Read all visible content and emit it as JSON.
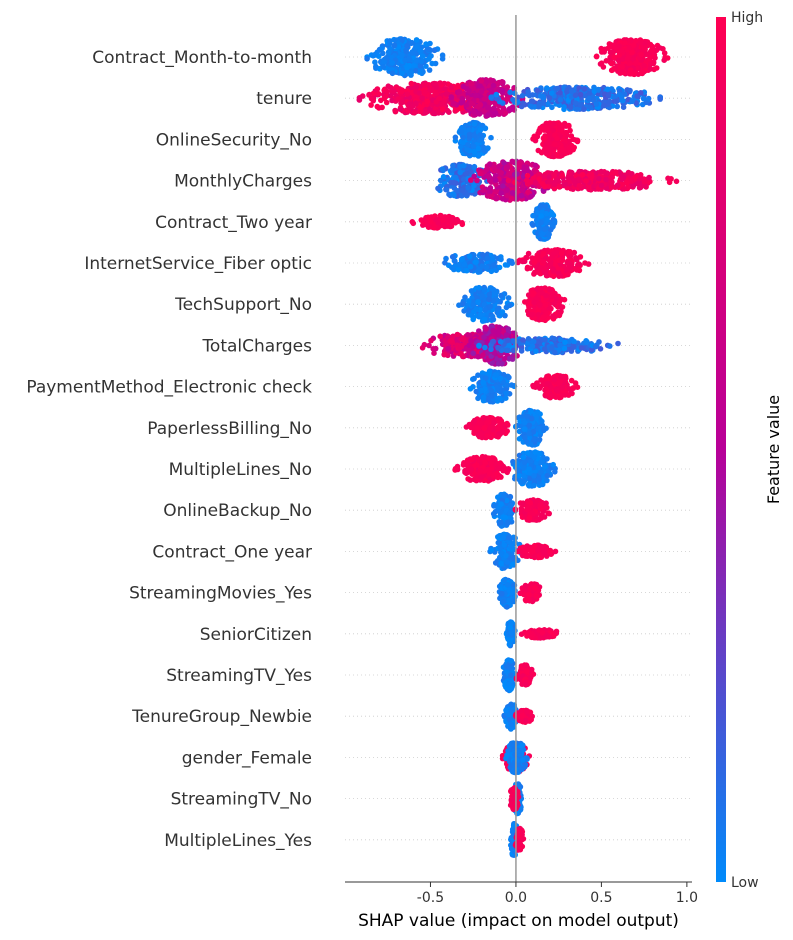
{
  "chart_data": {
    "type": "scatter",
    "subtype": "shap-beeswarm",
    "xlabel": "SHAP value (impact on model output)",
    "xlim": [
      -1.0,
      1.03
    ],
    "xticks": [
      {
        "value": -0.5,
        "label": "-0.5"
      },
      {
        "value": 0.0,
        "label": "0.0"
      },
      {
        "value": 0.5,
        "label": "0.5"
      },
      {
        "value": 1.0,
        "label": "1.0"
      }
    ],
    "colorbar": {
      "title": "Feature value",
      "high_label": "High",
      "low_label": "Low",
      "low_color": "#008bfb",
      "mid_color": "#b80098",
      "high_color": "#ff0052"
    },
    "reference_line": 0.0,
    "grid": "dotted horizontal per feature",
    "features": [
      {
        "name": "Contract_Month-to-month",
        "groups": [
          {
            "center": -0.65,
            "spread": 0.17,
            "height": 0.9,
            "count": 260,
            "value_low": 0.0,
            "value_high": 0.08
          },
          {
            "center": 0.68,
            "spread": 0.16,
            "height": 0.85,
            "count": 320,
            "value_low": 0.92,
            "value_high": 1.0
          }
        ]
      },
      {
        "name": "tenure",
        "groups": [
          {
            "center": -0.5,
            "spread": 0.32,
            "height": 0.75,
            "count": 420,
            "value_low": 0.82,
            "value_high": 1.0
          },
          {
            "center": -0.17,
            "spread": 0.16,
            "height": 0.9,
            "count": 280,
            "value_low": 0.5,
            "value_high": 0.75
          },
          {
            "center": 0.35,
            "spread": 0.38,
            "height": 0.55,
            "count": 360,
            "value_low": 0.0,
            "value_high": 0.2
          }
        ]
      },
      {
        "name": "OnlineSecurity_No",
        "groups": [
          {
            "center": -0.25,
            "spread": 0.08,
            "height": 0.85,
            "count": 200,
            "value_low": 0.0,
            "value_high": 0.08
          },
          {
            "center": 0.23,
            "spread": 0.1,
            "height": 0.85,
            "count": 230,
            "value_low": 0.92,
            "value_high": 1.0
          }
        ]
      },
      {
        "name": "MonthlyCharges",
        "groups": [
          {
            "center": -0.32,
            "spread": 0.12,
            "height": 0.8,
            "count": 200,
            "value_low": 0.0,
            "value_high": 0.18
          },
          {
            "center": -0.03,
            "spread": 0.18,
            "height": 0.95,
            "count": 330,
            "value_low": 0.45,
            "value_high": 0.8
          },
          {
            "center": 0.45,
            "spread": 0.38,
            "height": 0.45,
            "count": 280,
            "value_low": 0.82,
            "value_high": 1.0
          }
        ]
      },
      {
        "name": "Contract_Two year",
        "groups": [
          {
            "center": -0.45,
            "spread": 0.12,
            "height": 0.3,
            "count": 110,
            "value_low": 0.92,
            "value_high": 1.0
          },
          {
            "center": 0.16,
            "spread": 0.05,
            "height": 0.85,
            "count": 180,
            "value_low": 0.0,
            "value_high": 0.08
          }
        ]
      },
      {
        "name": "InternetService_Fiber optic",
        "groups": [
          {
            "center": -0.23,
            "spread": 0.16,
            "height": 0.45,
            "count": 150,
            "value_low": 0.0,
            "value_high": 0.1
          },
          {
            "center": 0.22,
            "spread": 0.16,
            "height": 0.65,
            "count": 200,
            "value_low": 0.9,
            "value_high": 1.0
          }
        ]
      },
      {
        "name": "TechSupport_No",
        "groups": [
          {
            "center": -0.18,
            "spread": 0.12,
            "height": 0.85,
            "count": 200,
            "value_low": 0.0,
            "value_high": 0.08
          },
          {
            "center": 0.16,
            "spread": 0.1,
            "height": 0.8,
            "count": 200,
            "value_low": 0.92,
            "value_high": 1.0
          }
        ]
      },
      {
        "name": "TotalCharges",
        "groups": [
          {
            "center": -0.28,
            "spread": 0.22,
            "height": 0.55,
            "count": 230,
            "value_low": 0.55,
            "value_high": 0.9
          },
          {
            "center": -0.12,
            "spread": 0.12,
            "height": 0.95,
            "count": 230,
            "value_low": 0.35,
            "value_high": 0.7
          },
          {
            "center": 0.2,
            "spread": 0.32,
            "height": 0.35,
            "count": 220,
            "value_low": 0.0,
            "value_high": 0.18
          }
        ]
      },
      {
        "name": "PaymentMethod_Electronic check",
        "groups": [
          {
            "center": -0.14,
            "spread": 0.1,
            "height": 0.75,
            "count": 190,
            "value_low": 0.0,
            "value_high": 0.08
          },
          {
            "center": 0.23,
            "spread": 0.1,
            "height": 0.55,
            "count": 170,
            "value_low": 0.92,
            "value_high": 1.0
          }
        ]
      },
      {
        "name": "PaperlessBilling_No",
        "groups": [
          {
            "center": -0.16,
            "spread": 0.1,
            "height": 0.5,
            "count": 160,
            "value_low": 0.92,
            "value_high": 1.0
          },
          {
            "center": 0.09,
            "spread": 0.07,
            "height": 0.85,
            "count": 180,
            "value_low": 0.0,
            "value_high": 0.08
          }
        ]
      },
      {
        "name": "MultipleLines_No",
        "groups": [
          {
            "center": -0.2,
            "spread": 0.12,
            "height": 0.6,
            "count": 190,
            "value_low": 0.92,
            "value_high": 1.0
          },
          {
            "center": 0.1,
            "spread": 0.1,
            "height": 0.85,
            "count": 200,
            "value_low": 0.0,
            "value_high": 0.08
          }
        ]
      },
      {
        "name": "OnlineBackup_No",
        "groups": [
          {
            "center": -0.07,
            "spread": 0.05,
            "height": 0.8,
            "count": 130,
            "value_low": 0.0,
            "value_high": 0.08
          },
          {
            "center": 0.1,
            "spread": 0.08,
            "height": 0.5,
            "count": 120,
            "value_low": 0.92,
            "value_high": 1.0
          }
        ]
      },
      {
        "name": "Contract_One year",
        "groups": [
          {
            "center": -0.06,
            "spread": 0.07,
            "height": 0.85,
            "count": 140,
            "value_low": 0.0,
            "value_high": 0.08
          },
          {
            "center": 0.12,
            "spread": 0.09,
            "height": 0.3,
            "count": 110,
            "value_low": 0.92,
            "value_high": 1.0
          }
        ]
      },
      {
        "name": "StreamingMovies_Yes",
        "groups": [
          {
            "center": -0.05,
            "spread": 0.04,
            "height": 0.7,
            "count": 110,
            "value_low": 0.0,
            "value_high": 0.08
          },
          {
            "center": 0.09,
            "spread": 0.05,
            "height": 0.45,
            "count": 80,
            "value_low": 0.92,
            "value_high": 1.0
          }
        ]
      },
      {
        "name": "SeniorCitizen",
        "groups": [
          {
            "center": -0.03,
            "spread": 0.02,
            "height": 0.6,
            "count": 90,
            "value_low": 0.0,
            "value_high": 0.08
          },
          {
            "center": 0.15,
            "spread": 0.09,
            "height": 0.2,
            "count": 90,
            "value_low": 0.92,
            "value_high": 1.0
          }
        ]
      },
      {
        "name": "StreamingTV_Yes",
        "groups": [
          {
            "center": -0.04,
            "spread": 0.03,
            "height": 0.75,
            "count": 100,
            "value_low": 0.0,
            "value_high": 0.08
          },
          {
            "center": 0.05,
            "spread": 0.04,
            "height": 0.5,
            "count": 80,
            "value_low": 0.92,
            "value_high": 1.0
          }
        ]
      },
      {
        "name": "TenureGroup_Newbie",
        "groups": [
          {
            "center": -0.03,
            "spread": 0.03,
            "height": 0.65,
            "count": 100,
            "value_low": 0.0,
            "value_high": 0.08
          },
          {
            "center": 0.05,
            "spread": 0.04,
            "height": 0.3,
            "count": 70,
            "value_low": 0.92,
            "value_high": 1.0
          }
        ]
      },
      {
        "name": "gender_Female",
        "groups": [
          {
            "center": 0.0,
            "spread": 0.06,
            "height": 0.7,
            "count": 150,
            "value_low": 0.92,
            "value_high": 1.0
          },
          {
            "center": 0.0,
            "spread": 0.05,
            "height": 0.75,
            "count": 140,
            "value_low": 0.0,
            "value_high": 0.08
          }
        ]
      },
      {
        "name": "StreamingTV_No",
        "groups": [
          {
            "center": 0.01,
            "spread": 0.02,
            "height": 0.75,
            "count": 100,
            "value_low": 0.0,
            "value_high": 0.08
          },
          {
            "center": -0.01,
            "spread": 0.02,
            "height": 0.55,
            "count": 80,
            "value_low": 0.92,
            "value_high": 1.0
          }
        ]
      },
      {
        "name": "MultipleLines_Yes",
        "groups": [
          {
            "center": -0.01,
            "spread": 0.02,
            "height": 0.8,
            "count": 100,
            "value_low": 0.0,
            "value_high": 0.08
          },
          {
            "center": 0.02,
            "spread": 0.02,
            "height": 0.55,
            "count": 80,
            "value_low": 0.92,
            "value_high": 1.0
          }
        ]
      }
    ]
  }
}
